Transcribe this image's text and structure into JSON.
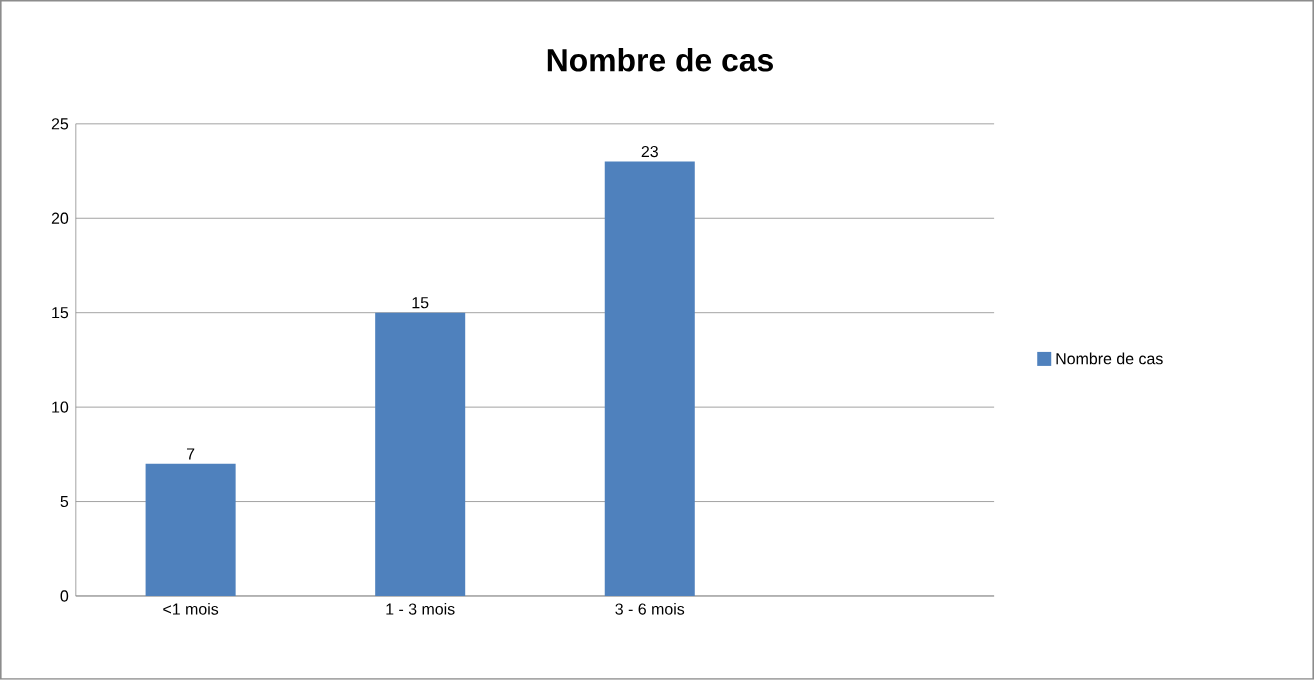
{
  "chart_data": {
    "type": "bar",
    "title": "Nombre de cas",
    "categories": [
      "<1 mois",
      "1 - 3 mois",
      "3 - 6 mois",
      null
    ],
    "series": [
      {
        "name": "Nombre de cas",
        "color": "#4f81bd",
        "values": [
          7,
          15,
          23,
          null
        ]
      }
    ],
    "ylim": [
      0,
      25
    ],
    "yticks": [
      0,
      5,
      10,
      15,
      20,
      25
    ],
    "grid": "y",
    "legend": "right",
    "data_labels": true
  }
}
